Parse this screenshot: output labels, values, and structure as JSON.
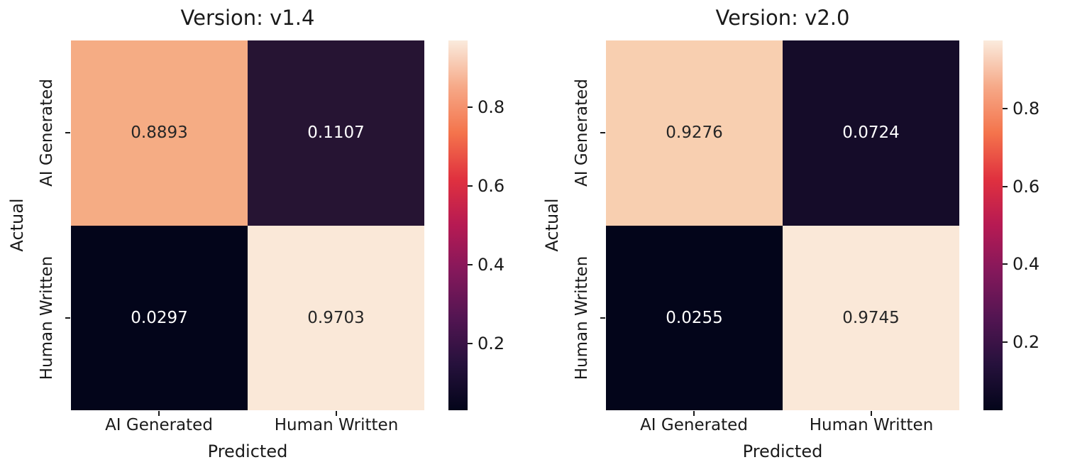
{
  "page": {
    "background": "#ffffff"
  },
  "colormap": {
    "name": "rocket",
    "gradient_stops": [
      "#03051A",
      "#26113C",
      "#531552",
      "#84185B",
      "#B61A53",
      "#E0313F",
      "#F4744C",
      "#F6A988",
      "#FAEBDD"
    ]
  },
  "chart_data": [
    {
      "type": "heatmap",
      "title": "Version: v1.4",
      "xlabel": "Predicted",
      "ylabel": "Actual",
      "x_tick_labels": [
        "AI Generated",
        "Human Written"
      ],
      "y_tick_labels": [
        "AI Generated",
        "Human Written"
      ],
      "matrix": [
        [
          0.8893,
          0.1107
        ],
        [
          0.0297,
          0.9703
        ]
      ],
      "cell_labels": [
        [
          "0.8893",
          "0.1107"
        ],
        [
          "0.0297",
          "0.9703"
        ]
      ],
      "cell_colors": [
        [
          "#F5AC84",
          "#261433"
        ],
        [
          "#03051A",
          "#FAE8D8"
        ]
      ],
      "cell_text_colors": [
        [
          "#262626",
          "#FFFFFF"
        ],
        [
          "#FFFFFF",
          "#262626"
        ]
      ],
      "colorbar": {
        "vmin": 0.0297,
        "vmax": 0.9703,
        "ticks": [
          0.2,
          0.4,
          0.6,
          0.8
        ],
        "tick_labels": [
          "0.2",
          "0.4",
          "0.6",
          "0.8"
        ]
      }
    },
    {
      "type": "heatmap",
      "title": "Version: v2.0",
      "xlabel": "Predicted",
      "ylabel": "Actual",
      "x_tick_labels": [
        "AI Generated",
        "Human Written"
      ],
      "y_tick_labels": [
        "AI Generated",
        "Human Written"
      ],
      "matrix": [
        [
          0.9276,
          0.0724
        ],
        [
          0.0255,
          0.9745
        ]
      ],
      "cell_labels": [
        [
          "0.9276",
          "0.0724"
        ],
        [
          "0.0255",
          "0.9745"
        ]
      ],
      "cell_colors": [
        [
          "#F8CFB0",
          "#150C29"
        ],
        [
          "#03051A",
          "#FAE8D8"
        ]
      ],
      "cell_text_colors": [
        [
          "#262626",
          "#FFFFFF"
        ],
        [
          "#FFFFFF",
          "#262626"
        ]
      ],
      "colorbar": {
        "vmin": 0.0255,
        "vmax": 0.9745,
        "ticks": [
          0.2,
          0.4,
          0.6,
          0.8
        ],
        "tick_labels": [
          "0.2",
          "0.4",
          "0.6",
          "0.8"
        ]
      }
    }
  ]
}
